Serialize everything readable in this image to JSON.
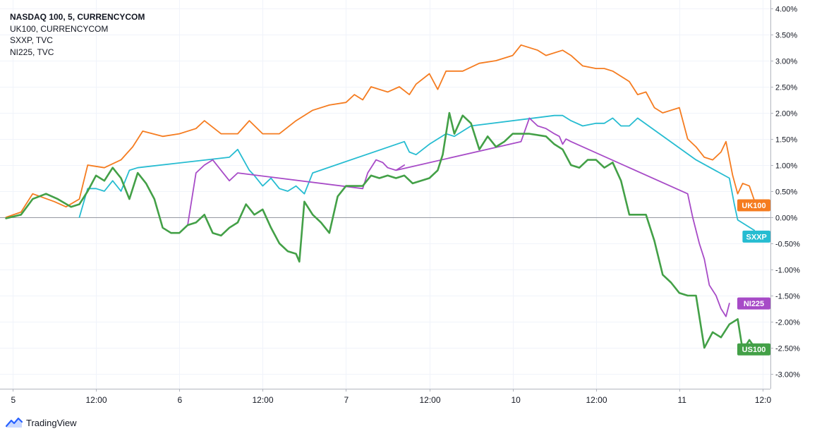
{
  "legend": [
    "NASDAQ 100, 5, CURRENCYCOM",
    "UK100, CURRENCYCOM",
    "SXXP, TVC",
    "NI225, TVC"
  ],
  "brand": {
    "name": "TradingView",
    "icon": "tradingview-logo-icon"
  },
  "chart_data": {
    "type": "line",
    "title": "",
    "xlabel": "",
    "ylabel": "",
    "ylim": [
      -3.25,
      4.0
    ],
    "y_ticks": [
      "4.00%",
      "3.50%",
      "3.00%",
      "2.50%",
      "2.00%",
      "1.50%",
      "1.00%",
      "0.50%",
      "0.00%",
      "-0.50%",
      "-1.00%",
      "-1.50%",
      "-2.00%",
      "-2.50%",
      "-3.00%"
    ],
    "y_tick_values": [
      4.0,
      3.5,
      3.0,
      2.5,
      2.0,
      1.5,
      1.0,
      0.5,
      0.0,
      -0.5,
      -1.0,
      -1.5,
      -2.0,
      -2.5,
      -3.0
    ],
    "xlim": [
      0,
      4.55
    ],
    "x_ticks": [
      {
        "label": "5",
        "pos": 0.0
      },
      {
        "label": "12:00",
        "pos": 0.5
      },
      {
        "label": "6",
        "pos": 1.0
      },
      {
        "label": "12:00",
        "pos": 1.5
      },
      {
        "label": "7",
        "pos": 2.0
      },
      {
        "label": "12:00",
        "pos": 2.5
      },
      {
        "label": "10",
        "pos": 3.0
      },
      {
        "label": "12:00",
        "pos": 3.5
      },
      {
        "label": "11",
        "pos": 4.0
      },
      {
        "label": "12:0",
        "pos": 4.5
      }
    ],
    "grid": true,
    "series": [
      {
        "name": "UK100",
        "color": "#f57c20",
        "tag": "UK100",
        "tag_value": 0.23,
        "points": [
          [
            -0.05,
            0.0
          ],
          [
            0.05,
            0.1
          ],
          [
            0.12,
            0.45
          ],
          [
            0.25,
            0.3
          ],
          [
            0.32,
            0.2
          ],
          [
            0.4,
            0.35
          ],
          [
            0.45,
            1.0
          ],
          [
            0.55,
            0.95
          ],
          [
            0.65,
            1.1
          ],
          [
            0.72,
            1.35
          ],
          [
            0.78,
            1.65
          ],
          [
            0.9,
            1.55
          ],
          [
            1.0,
            1.6
          ],
          [
            1.1,
            1.7
          ],
          [
            1.15,
            1.85
          ],
          [
            1.25,
            1.6
          ],
          [
            1.35,
            1.6
          ],
          [
            1.42,
            1.85
          ],
          [
            1.5,
            1.6
          ],
          [
            1.6,
            1.6
          ],
          [
            1.7,
            1.85
          ],
          [
            1.8,
            2.05
          ],
          [
            1.9,
            2.15
          ],
          [
            2.0,
            2.2
          ],
          [
            2.05,
            2.35
          ],
          [
            2.1,
            2.25
          ],
          [
            2.15,
            2.5
          ],
          [
            2.25,
            2.4
          ],
          [
            2.32,
            2.5
          ],
          [
            2.38,
            2.35
          ],
          [
            2.42,
            2.55
          ],
          [
            2.5,
            2.75
          ],
          [
            2.55,
            2.45
          ],
          [
            2.6,
            2.8
          ],
          [
            2.7,
            2.8
          ],
          [
            2.8,
            2.95
          ],
          [
            2.9,
            3.0
          ],
          [
            3.0,
            3.1
          ],
          [
            3.05,
            3.3
          ],
          [
            3.15,
            3.2
          ],
          [
            3.2,
            3.1
          ],
          [
            3.3,
            3.2
          ],
          [
            3.35,
            3.1
          ],
          [
            3.42,
            2.9
          ],
          [
            3.5,
            2.85
          ],
          [
            3.55,
            2.85
          ],
          [
            3.6,
            2.8
          ],
          [
            3.7,
            2.6
          ],
          [
            3.75,
            2.35
          ],
          [
            3.8,
            2.4
          ],
          [
            3.85,
            2.1
          ],
          [
            3.9,
            2.0
          ],
          [
            3.95,
            2.05
          ],
          [
            4.0,
            2.1
          ],
          [
            4.05,
            1.5
          ],
          [
            4.1,
            1.35
          ],
          [
            4.15,
            1.15
          ],
          [
            4.2,
            1.1
          ],
          [
            4.25,
            1.25
          ],
          [
            4.28,
            1.45
          ],
          [
            4.32,
            0.8
          ],
          [
            4.35,
            0.45
          ],
          [
            4.38,
            0.65
          ],
          [
            4.42,
            0.6
          ],
          [
            4.46,
            0.23
          ]
        ]
      },
      {
        "name": "SXXP",
        "color": "#26bcd1",
        "tag": "SXXP",
        "tag_value": -0.37,
        "points": [
          [
            0.4,
            0.0
          ],
          [
            0.45,
            0.55
          ],
          [
            0.5,
            0.55
          ],
          [
            0.55,
            0.5
          ],
          [
            0.6,
            0.7
          ],
          [
            0.65,
            0.5
          ],
          [
            0.7,
            0.9
          ],
          [
            0.75,
            0.95
          ],
          [
            1.3,
            1.15
          ],
          [
            1.35,
            1.3
          ],
          [
            1.42,
            0.9
          ],
          [
            1.45,
            0.8
          ],
          [
            1.5,
            0.6
          ],
          [
            1.55,
            0.75
          ],
          [
            1.6,
            0.55
          ],
          [
            1.65,
            0.5
          ],
          [
            1.7,
            0.6
          ],
          [
            1.75,
            0.45
          ],
          [
            1.8,
            0.85
          ],
          [
            2.35,
            1.45
          ],
          [
            2.38,
            1.25
          ],
          [
            2.42,
            1.2
          ],
          [
            2.5,
            1.4
          ],
          [
            2.55,
            1.5
          ],
          [
            2.6,
            1.6
          ],
          [
            2.65,
            1.55
          ],
          [
            2.7,
            1.65
          ],
          [
            2.75,
            1.75
          ],
          [
            3.25,
            1.95
          ],
          [
            3.3,
            1.95
          ],
          [
            3.35,
            1.85
          ],
          [
            3.42,
            1.75
          ],
          [
            3.5,
            1.8
          ],
          [
            3.55,
            1.8
          ],
          [
            3.6,
            1.9
          ],
          [
            3.65,
            1.75
          ],
          [
            3.7,
            1.75
          ],
          [
            3.75,
            1.9
          ],
          [
            4.1,
            1.1
          ],
          [
            4.3,
            0.75
          ],
          [
            4.33,
            0.25
          ],
          [
            4.35,
            -0.05
          ],
          [
            4.4,
            -0.15
          ],
          [
            4.45,
            -0.25
          ]
        ]
      },
      {
        "name": "NI225",
        "color": "#a74bc7",
        "tag": "NI225",
        "tag_value": -1.65,
        "points": [
          [
            1.05,
            -0.15
          ],
          [
            1.1,
            0.85
          ],
          [
            1.15,
            1.0
          ],
          [
            1.2,
            1.1
          ],
          [
            1.25,
            0.9
          ],
          [
            1.3,
            0.7
          ],
          [
            1.35,
            0.85
          ],
          [
            2.1,
            0.55
          ],
          [
            2.13,
            0.85
          ],
          [
            2.18,
            1.1
          ],
          [
            2.22,
            1.05
          ],
          [
            2.25,
            0.95
          ],
          [
            2.3,
            0.9
          ],
          [
            2.35,
            1.0
          ],
          [
            2.3,
            0.9
          ],
          [
            3.05,
            1.45
          ],
          [
            3.1,
            1.9
          ],
          [
            3.15,
            1.75
          ],
          [
            3.2,
            1.7
          ],
          [
            3.25,
            1.6
          ],
          [
            3.28,
            1.55
          ],
          [
            3.3,
            1.4
          ],
          [
            3.32,
            1.5
          ],
          [
            3.35,
            1.45
          ],
          [
            4.05,
            0.45
          ],
          [
            4.08,
            0.0
          ],
          [
            4.12,
            -0.5
          ],
          [
            4.15,
            -0.8
          ],
          [
            4.18,
            -1.3
          ],
          [
            4.22,
            -1.5
          ],
          [
            4.25,
            -1.75
          ],
          [
            4.28,
            -1.9
          ],
          [
            4.3,
            -1.65
          ]
        ]
      },
      {
        "name": "NASDAQ 100",
        "color": "#43a047",
        "tag": "US100",
        "tag_value": -2.53,
        "points": [
          [
            -0.05,
            -0.02
          ],
          [
            0.05,
            0.05
          ],
          [
            0.12,
            0.35
          ],
          [
            0.2,
            0.45
          ],
          [
            0.27,
            0.35
          ],
          [
            0.35,
            0.2
          ],
          [
            0.4,
            0.25
          ],
          [
            0.45,
            0.5
          ],
          [
            0.5,
            0.8
          ],
          [
            0.55,
            0.7
          ],
          [
            0.6,
            0.95
          ],
          [
            0.65,
            0.75
          ],
          [
            0.7,
            0.35
          ],
          [
            0.75,
            0.85
          ],
          [
            0.8,
            0.65
          ],
          [
            0.85,
            0.35
          ],
          [
            0.9,
            -0.2
          ],
          [
            0.95,
            -0.3
          ],
          [
            1.0,
            -0.3
          ],
          [
            1.05,
            -0.15
          ],
          [
            1.1,
            -0.1
          ],
          [
            1.15,
            0.05
          ],
          [
            1.2,
            -0.3
          ],
          [
            1.25,
            -0.35
          ],
          [
            1.3,
            -0.2
          ],
          [
            1.35,
            -0.1
          ],
          [
            1.4,
            0.25
          ],
          [
            1.45,
            0.05
          ],
          [
            1.5,
            0.15
          ],
          [
            1.55,
            -0.2
          ],
          [
            1.6,
            -0.5
          ],
          [
            1.65,
            -0.65
          ],
          [
            1.7,
            -0.7
          ],
          [
            1.72,
            -0.85
          ],
          [
            1.75,
            0.3
          ],
          [
            1.8,
            0.05
          ],
          [
            1.85,
            -0.1
          ],
          [
            1.9,
            -0.3
          ],
          [
            1.95,
            0.4
          ],
          [
            2.0,
            0.6
          ],
          [
            2.05,
            0.6
          ],
          [
            2.1,
            0.6
          ],
          [
            2.15,
            0.8
          ],
          [
            2.2,
            0.75
          ],
          [
            2.25,
            0.8
          ],
          [
            2.3,
            0.75
          ],
          [
            2.35,
            0.8
          ],
          [
            2.4,
            0.65
          ],
          [
            2.5,
            0.75
          ],
          [
            2.55,
            0.9
          ],
          [
            2.58,
            1.2
          ],
          [
            2.62,
            2.0
          ],
          [
            2.65,
            1.6
          ],
          [
            2.7,
            1.95
          ],
          [
            2.75,
            1.8
          ],
          [
            2.8,
            1.3
          ],
          [
            2.85,
            1.55
          ],
          [
            2.9,
            1.35
          ],
          [
            2.95,
            1.45
          ],
          [
            3.0,
            1.6
          ],
          [
            3.1,
            1.6
          ],
          [
            3.2,
            1.55
          ],
          [
            3.25,
            1.4
          ],
          [
            3.3,
            1.3
          ],
          [
            3.35,
            1.0
          ],
          [
            3.4,
            0.95
          ],
          [
            3.45,
            1.1
          ],
          [
            3.5,
            1.1
          ],
          [
            3.55,
            0.95
          ],
          [
            3.6,
            1.05
          ],
          [
            3.65,
            0.7
          ],
          [
            3.7,
            0.05
          ],
          [
            3.75,
            0.05
          ],
          [
            3.8,
            0.05
          ],
          [
            3.85,
            -0.45
          ],
          [
            3.9,
            -1.1
          ],
          [
            3.95,
            -1.25
          ],
          [
            4.0,
            -1.45
          ],
          [
            4.05,
            -1.5
          ],
          [
            4.1,
            -1.5
          ],
          [
            4.15,
            -2.5
          ],
          [
            4.2,
            -2.2
          ],
          [
            4.25,
            -2.3
          ],
          [
            4.3,
            -2.05
          ],
          [
            4.35,
            -1.95
          ],
          [
            4.38,
            -2.55
          ],
          [
            4.42,
            -2.35
          ],
          [
            4.46,
            -2.53
          ]
        ]
      }
    ]
  }
}
